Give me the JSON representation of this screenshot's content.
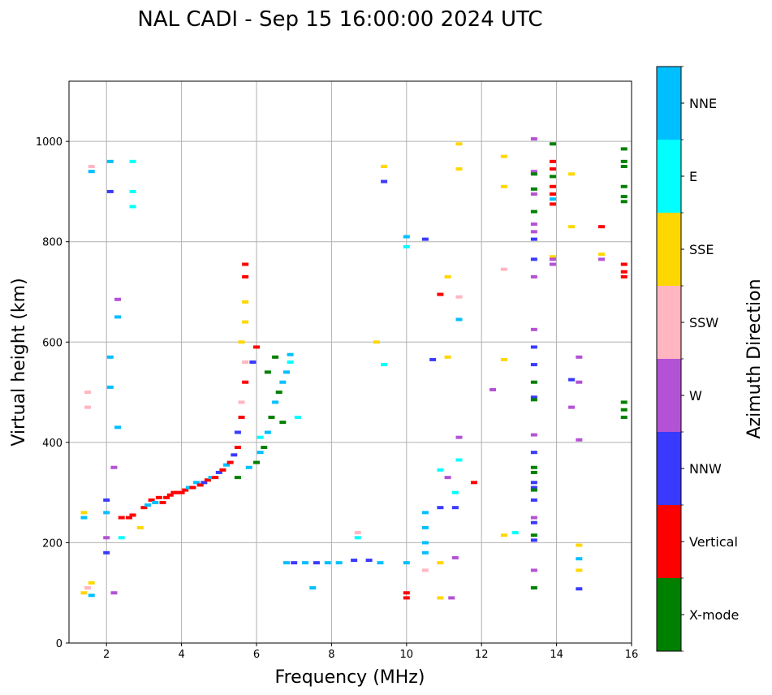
{
  "chart_data": {
    "type": "scatter",
    "title": "NAL CADI - Sep 15 16:00:00 2024 UTC",
    "xlabel": "Frequency (MHz)",
    "ylabel": "Virtual height (km)",
    "xlim": [
      1,
      16
    ],
    "ylim": [
      0,
      1120
    ],
    "xticks": [
      2,
      4,
      6,
      8,
      10,
      12,
      14,
      16
    ],
    "yticks": [
      0,
      200,
      400,
      600,
      800,
      1000
    ],
    "grid": true,
    "colorbar": {
      "label": "Azimuth Direction",
      "categories": [
        {
          "name": "X-mode",
          "color": "#008000"
        },
        {
          "name": "Vertical",
          "color": "#ff0000"
        },
        {
          "name": "NNW",
          "color": "#3a3aff"
        },
        {
          "name": "W",
          "color": "#b452d6"
        },
        {
          "name": "SSW",
          "color": "#ffb6c1"
        },
        {
          "name": "SSE",
          "color": "#ffd700"
        },
        {
          "name": "E",
          "color": "#00ffff"
        },
        {
          "name": "NNE",
          "color": "#00bfff"
        }
      ]
    },
    "points": [
      {
        "f": 1.4,
        "h": 100,
        "az": "SSE"
      },
      {
        "f": 1.5,
        "h": 110,
        "az": "SSW"
      },
      {
        "f": 1.6,
        "h": 95,
        "az": "NNE"
      },
      {
        "f": 1.6,
        "h": 120,
        "az": "SSE"
      },
      {
        "f": 1.4,
        "h": 250,
        "az": "NNE"
      },
      {
        "f": 1.4,
        "h": 260,
        "az": "SSE"
      },
      {
        "f": 1.5,
        "h": 500,
        "az": "SSW"
      },
      {
        "f": 1.5,
        "h": 470,
        "az": "SSW"
      },
      {
        "f": 1.6,
        "h": 940,
        "az": "NNE"
      },
      {
        "f": 1.6,
        "h": 950,
        "az": "SSW"
      },
      {
        "f": 2.0,
        "h": 180,
        "az": "NNW"
      },
      {
        "f": 2.0,
        "h": 210,
        "az": "W"
      },
      {
        "f": 2.0,
        "h": 260,
        "az": "NNE"
      },
      {
        "f": 2.0,
        "h": 285,
        "az": "NNW"
      },
      {
        "f": 2.1,
        "h": 900,
        "az": "NNW"
      },
      {
        "f": 2.1,
        "h": 960,
        "az": "NNE"
      },
      {
        "f": 2.1,
        "h": 570,
        "az": "NNE"
      },
      {
        "f": 2.1,
        "h": 510,
        "az": "NNE"
      },
      {
        "f": 2.2,
        "h": 350,
        "az": "W"
      },
      {
        "f": 2.2,
        "h": 100,
        "az": "W"
      },
      {
        "f": 2.3,
        "h": 430,
        "az": "NNE"
      },
      {
        "f": 2.3,
        "h": 650,
        "az": "NNE"
      },
      {
        "f": 2.3,
        "h": 685,
        "az": "W"
      },
      {
        "f": 2.4,
        "h": 210,
        "az": "E"
      },
      {
        "f": 2.4,
        "h": 250,
        "az": "Vertical"
      },
      {
        "f": 2.6,
        "h": 250,
        "az": "Vertical"
      },
      {
        "f": 2.7,
        "h": 255,
        "az": "Vertical"
      },
      {
        "f": 2.7,
        "h": 960,
        "az": "E"
      },
      {
        "f": 2.7,
        "h": 900,
        "az": "E"
      },
      {
        "f": 2.7,
        "h": 870,
        "az": "E"
      },
      {
        "f": 2.9,
        "h": 230,
        "az": "SSE"
      },
      {
        "f": 3.0,
        "h": 270,
        "az": "Vertical"
      },
      {
        "f": 3.1,
        "h": 275,
        "az": "NNE"
      },
      {
        "f": 3.2,
        "h": 285,
        "az": "Vertical"
      },
      {
        "f": 3.3,
        "h": 280,
        "az": "NNE"
      },
      {
        "f": 3.4,
        "h": 290,
        "az": "Vertical"
      },
      {
        "f": 3.5,
        "h": 280,
        "az": "Vertical"
      },
      {
        "f": 3.6,
        "h": 290,
        "az": "Vertical"
      },
      {
        "f": 3.7,
        "h": 295,
        "az": "Vertical"
      },
      {
        "f": 3.8,
        "h": 300,
        "az": "Vertical"
      },
      {
        "f": 3.9,
        "h": 300,
        "az": "Vertical"
      },
      {
        "f": 4.0,
        "h": 300,
        "az": "Vertical"
      },
      {
        "f": 4.1,
        "h": 305,
        "az": "Vertical"
      },
      {
        "f": 4.2,
        "h": 310,
        "az": "NNE"
      },
      {
        "f": 4.3,
        "h": 310,
        "az": "Vertical"
      },
      {
        "f": 4.4,
        "h": 320,
        "az": "NNE"
      },
      {
        "f": 4.5,
        "h": 315,
        "az": "Vertical"
      },
      {
        "f": 4.6,
        "h": 320,
        "az": "NNW"
      },
      {
        "f": 4.7,
        "h": 325,
        "az": "Vertical"
      },
      {
        "f": 4.8,
        "h": 330,
        "az": "NNE"
      },
      {
        "f": 4.9,
        "h": 330,
        "az": "Vertical"
      },
      {
        "f": 5.0,
        "h": 340,
        "az": "NNW"
      },
      {
        "f": 5.1,
        "h": 345,
        "az": "Vertical"
      },
      {
        "f": 5.2,
        "h": 355,
        "az": "NNE"
      },
      {
        "f": 5.3,
        "h": 360,
        "az": "Vertical"
      },
      {
        "f": 5.4,
        "h": 375,
        "az": "NNW"
      },
      {
        "f": 5.5,
        "h": 390,
        "az": "Vertical"
      },
      {
        "f": 5.5,
        "h": 420,
        "az": "NNW"
      },
      {
        "f": 5.6,
        "h": 450,
        "az": "Vertical"
      },
      {
        "f": 5.6,
        "h": 480,
        "az": "SSW"
      },
      {
        "f": 5.7,
        "h": 520,
        "az": "Vertical"
      },
      {
        "f": 5.7,
        "h": 560,
        "az": "SSW"
      },
      {
        "f": 5.6,
        "h": 600,
        "az": "SSE"
      },
      {
        "f": 5.7,
        "h": 640,
        "az": "SSE"
      },
      {
        "f": 5.7,
        "h": 680,
        "az": "SSE"
      },
      {
        "f": 5.7,
        "h": 730,
        "az": "Vertical"
      },
      {
        "f": 5.7,
        "h": 755,
        "az": "Vertical"
      },
      {
        "f": 5.5,
        "h": 330,
        "az": "X-mode"
      },
      {
        "f": 5.8,
        "h": 350,
        "az": "NNE"
      },
      {
        "f": 6.0,
        "h": 360,
        "az": "X-mode"
      },
      {
        "f": 6.1,
        "h": 380,
        "az": "NNE"
      },
      {
        "f": 6.2,
        "h": 390,
        "az": "X-mode"
      },
      {
        "f": 6.3,
        "h": 420,
        "az": "NNE"
      },
      {
        "f": 6.4,
        "h": 450,
        "az": "X-mode"
      },
      {
        "f": 6.5,
        "h": 480,
        "az": "NNE"
      },
      {
        "f": 6.6,
        "h": 500,
        "az": "X-mode"
      },
      {
        "f": 6.7,
        "h": 520,
        "az": "NNE"
      },
      {
        "f": 6.8,
        "h": 540,
        "az": "NNE"
      },
      {
        "f": 6.9,
        "h": 560,
        "az": "E"
      },
      {
        "f": 6.9,
        "h": 575,
        "az": "NNE"
      },
      {
        "f": 7.1,
        "h": 450,
        "az": "E"
      },
      {
        "f": 6.5,
        "h": 570,
        "az": "X-mode"
      },
      {
        "f": 6.7,
        "h": 440,
        "az": "X-mode"
      },
      {
        "f": 6.3,
        "h": 540,
        "az": "X-mode"
      },
      {
        "f": 6.0,
        "h": 590,
        "az": "Vertical"
      },
      {
        "f": 5.9,
        "h": 560,
        "az": "NNW"
      },
      {
        "f": 6.1,
        "h": 410,
        "az": "E"
      },
      {
        "f": 6.8,
        "h": 160,
        "az": "NNE"
      },
      {
        "f": 7.0,
        "h": 160,
        "az": "NNW"
      },
      {
        "f": 7.3,
        "h": 160,
        "az": "NNE"
      },
      {
        "f": 7.6,
        "h": 160,
        "az": "NNW"
      },
      {
        "f": 7.9,
        "h": 160,
        "az": "NNE"
      },
      {
        "f": 8.2,
        "h": 160,
        "az": "NNE"
      },
      {
        "f": 8.6,
        "h": 165,
        "az": "NNW"
      },
      {
        "f": 9.0,
        "h": 165,
        "az": "NNW"
      },
      {
        "f": 9.3,
        "h": 160,
        "az": "NNE"
      },
      {
        "f": 7.5,
        "h": 110,
        "az": "NNE"
      },
      {
        "f": 8.7,
        "h": 210,
        "az": "E"
      },
      {
        "f": 8.7,
        "h": 220,
        "az": "SSW"
      },
      {
        "f": 9.2,
        "h": 600,
        "az": "SSE"
      },
      {
        "f": 9.4,
        "h": 555,
        "az": "E"
      },
      {
        "f": 9.4,
        "h": 920,
        "az": "NNW"
      },
      {
        "f": 9.4,
        "h": 950,
        "az": "SSE"
      },
      {
        "f": 10.0,
        "h": 810,
        "az": "NNE"
      },
      {
        "f": 10.0,
        "h": 790,
        "az": "E"
      },
      {
        "f": 10.0,
        "h": 100,
        "az": "Vertical"
      },
      {
        "f": 10.0,
        "h": 90,
        "az": "Vertical"
      },
      {
        "f": 10.0,
        "h": 160,
        "az": "NNE"
      },
      {
        "f": 10.5,
        "h": 805,
        "az": "NNW"
      },
      {
        "f": 10.5,
        "h": 200,
        "az": "NNE"
      },
      {
        "f": 10.5,
        "h": 230,
        "az": "NNE"
      },
      {
        "f": 10.5,
        "h": 260,
        "az": "NNE"
      },
      {
        "f": 10.5,
        "h": 180,
        "az": "NNE"
      },
      {
        "f": 10.5,
        "h": 145,
        "az": "SSW"
      },
      {
        "f": 10.7,
        "h": 565,
        "az": "NNW"
      },
      {
        "f": 10.9,
        "h": 695,
        "az": "Vertical"
      },
      {
        "f": 10.9,
        "h": 345,
        "az": "E"
      },
      {
        "f": 10.9,
        "h": 270,
        "az": "NNW"
      },
      {
        "f": 10.9,
        "h": 160,
        "az": "SSE"
      },
      {
        "f": 10.9,
        "h": 90,
        "az": "SSE"
      },
      {
        "f": 11.1,
        "h": 730,
        "az": "SSE"
      },
      {
        "f": 11.1,
        "h": 570,
        "az": "SSE"
      },
      {
        "f": 11.1,
        "h": 330,
        "az": "W"
      },
      {
        "f": 11.2,
        "h": 90,
        "az": "W"
      },
      {
        "f": 11.3,
        "h": 270,
        "az": "NNW"
      },
      {
        "f": 11.3,
        "h": 300,
        "az": "E"
      },
      {
        "f": 11.3,
        "h": 170,
        "az": "W"
      },
      {
        "f": 11.4,
        "h": 995,
        "az": "SSE"
      },
      {
        "f": 11.4,
        "h": 945,
        "az": "SSE"
      },
      {
        "f": 11.4,
        "h": 690,
        "az": "SSW"
      },
      {
        "f": 11.4,
        "h": 645,
        "az": "NNE"
      },
      {
        "f": 11.4,
        "h": 410,
        "az": "W"
      },
      {
        "f": 11.4,
        "h": 365,
        "az": "E"
      },
      {
        "f": 11.8,
        "h": 320,
        "az": "Vertical"
      },
      {
        "f": 12.3,
        "h": 505,
        "az": "W"
      },
      {
        "f": 12.6,
        "h": 970,
        "az": "SSE"
      },
      {
        "f": 12.6,
        "h": 910,
        "az": "SSE"
      },
      {
        "f": 12.6,
        "h": 745,
        "az": "SSW"
      },
      {
        "f": 12.6,
        "h": 565,
        "az": "SSE"
      },
      {
        "f": 12.6,
        "h": 215,
        "az": "SSE"
      },
      {
        "f": 12.9,
        "h": 220,
        "az": "E"
      },
      {
        "f": 13.4,
        "h": 1005,
        "az": "W"
      },
      {
        "f": 13.4,
        "h": 940,
        "az": "W"
      },
      {
        "f": 13.4,
        "h": 935,
        "az": "X-mode"
      },
      {
        "f": 13.4,
        "h": 905,
        "az": "X-mode"
      },
      {
        "f": 13.4,
        "h": 895,
        "az": "W"
      },
      {
        "f": 13.4,
        "h": 860,
        "az": "X-mode"
      },
      {
        "f": 13.4,
        "h": 835,
        "az": "W"
      },
      {
        "f": 13.4,
        "h": 820,
        "az": "W"
      },
      {
        "f": 13.4,
        "h": 805,
        "az": "NNW"
      },
      {
        "f": 13.4,
        "h": 765,
        "az": "NNW"
      },
      {
        "f": 13.4,
        "h": 730,
        "az": "W"
      },
      {
        "f": 13.4,
        "h": 625,
        "az": "W"
      },
      {
        "f": 13.4,
        "h": 590,
        "az": "NNW"
      },
      {
        "f": 13.4,
        "h": 555,
        "az": "NNW"
      },
      {
        "f": 13.4,
        "h": 520,
        "az": "X-mode"
      },
      {
        "f": 13.4,
        "h": 490,
        "az": "NNW"
      },
      {
        "f": 13.4,
        "h": 485,
        "az": "X-mode"
      },
      {
        "f": 13.4,
        "h": 415,
        "az": "W"
      },
      {
        "f": 13.4,
        "h": 380,
        "az": "NNW"
      },
      {
        "f": 13.4,
        "h": 350,
        "az": "X-mode"
      },
      {
        "f": 13.4,
        "h": 340,
        "az": "X-mode"
      },
      {
        "f": 13.4,
        "h": 320,
        "az": "NNW"
      },
      {
        "f": 13.4,
        "h": 310,
        "az": "NNW"
      },
      {
        "f": 13.4,
        "h": 305,
        "az": "X-mode"
      },
      {
        "f": 13.4,
        "h": 285,
        "az": "NNW"
      },
      {
        "f": 13.4,
        "h": 250,
        "az": "W"
      },
      {
        "f": 13.4,
        "h": 240,
        "az": "NNW"
      },
      {
        "f": 13.4,
        "h": 215,
        "az": "X-mode"
      },
      {
        "f": 13.4,
        "h": 205,
        "az": "NNW"
      },
      {
        "f": 13.4,
        "h": 145,
        "az": "W"
      },
      {
        "f": 13.4,
        "h": 110,
        "az": "X-mode"
      },
      {
        "f": 13.9,
        "h": 995,
        "az": "X-mode"
      },
      {
        "f": 13.9,
        "h": 960,
        "az": "Vertical"
      },
      {
        "f": 13.9,
        "h": 945,
        "az": "Vertical"
      },
      {
        "f": 13.9,
        "h": 930,
        "az": "X-mode"
      },
      {
        "f": 13.9,
        "h": 910,
        "az": "Vertical"
      },
      {
        "f": 13.9,
        "h": 895,
        "az": "Vertical"
      },
      {
        "f": 13.9,
        "h": 885,
        "az": "NNE"
      },
      {
        "f": 13.9,
        "h": 875,
        "az": "Vertical"
      },
      {
        "f": 13.9,
        "h": 770,
        "az": "SSE"
      },
      {
        "f": 13.9,
        "h": 765,
        "az": "W"
      },
      {
        "f": 13.9,
        "h": 755,
        "az": "W"
      },
      {
        "f": 14.4,
        "h": 935,
        "az": "SSE"
      },
      {
        "f": 14.4,
        "h": 830,
        "az": "SSE"
      },
      {
        "f": 14.4,
        "h": 525,
        "az": "NNW"
      },
      {
        "f": 14.4,
        "h": 470,
        "az": "W"
      },
      {
        "f": 14.6,
        "h": 570,
        "az": "W"
      },
      {
        "f": 14.6,
        "h": 520,
        "az": "W"
      },
      {
        "f": 14.6,
        "h": 405,
        "az": "W"
      },
      {
        "f": 14.6,
        "h": 195,
        "az": "SSE"
      },
      {
        "f": 14.6,
        "h": 168,
        "az": "NNE"
      },
      {
        "f": 14.6,
        "h": 145,
        "az": "SSE"
      },
      {
        "f": 14.6,
        "h": 108,
        "az": "NNW"
      },
      {
        "f": 15.2,
        "h": 830,
        "az": "Vertical"
      },
      {
        "f": 15.2,
        "h": 775,
        "az": "SSE"
      },
      {
        "f": 15.2,
        "h": 765,
        "az": "W"
      },
      {
        "f": 15.8,
        "h": 755,
        "az": "Vertical"
      },
      {
        "f": 15.8,
        "h": 740,
        "az": "Vertical"
      },
      {
        "f": 15.8,
        "h": 730,
        "az": "Vertical"
      },
      {
        "f": 15.8,
        "h": 985,
        "az": "X-mode"
      },
      {
        "f": 15.8,
        "h": 960,
        "az": "X-mode"
      },
      {
        "f": 15.8,
        "h": 950,
        "az": "X-mode"
      },
      {
        "f": 15.8,
        "h": 910,
        "az": "X-mode"
      },
      {
        "f": 15.8,
        "h": 890,
        "az": "X-mode"
      },
      {
        "f": 15.8,
        "h": 880,
        "az": "X-mode"
      },
      {
        "f": 15.8,
        "h": 480,
        "az": "X-mode"
      },
      {
        "f": 15.8,
        "h": 465,
        "az": "X-mode"
      },
      {
        "f": 15.8,
        "h": 450,
        "az": "X-mode"
      }
    ]
  }
}
